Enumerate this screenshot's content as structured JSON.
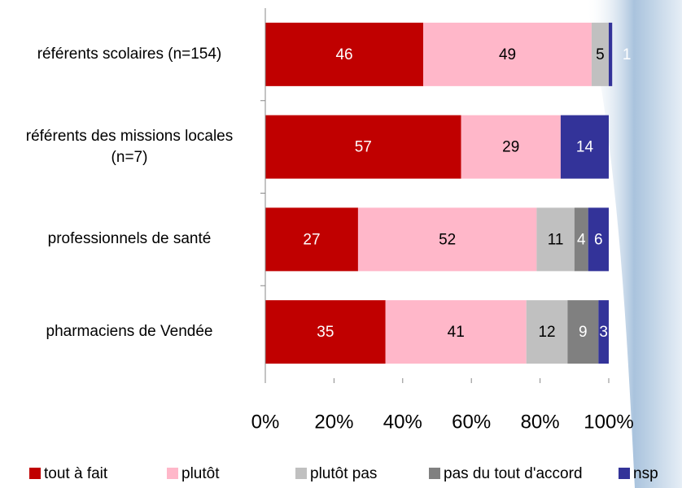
{
  "chart_data": {
    "type": "stacked_bar_horizontal",
    "categories": [
      "référents scolaires (n=154)",
      "référents des missions locales (n=7)",
      "professionnels de santé",
      "pharmaciens de Vendée"
    ],
    "series": [
      {
        "name": "tout à fait",
        "color": "#c00000",
        "values": [
          46,
          57,
          27,
          35
        ]
      },
      {
        "name": "plutôt",
        "color": "#ffb7c9",
        "values": [
          49,
          29,
          52,
          41
        ]
      },
      {
        "name": "plutôt pas",
        "color": "#c0c0c0",
        "values": [
          5,
          null,
          11,
          12
        ]
      },
      {
        "name": "pas du tout d'accord",
        "color": "#808080",
        "values": [
          null,
          null,
          4,
          9
        ]
      },
      {
        "name": "nsp",
        "color": "#333399",
        "values": [
          1,
          14,
          6,
          3
        ]
      }
    ],
    "xlim": [
      0,
      100
    ],
    "xticks": [
      {
        "value": 0,
        "label": "0%"
      },
      {
        "value": 20,
        "label": "20%"
      },
      {
        "value": 40,
        "label": "40%"
      },
      {
        "value": 60,
        "label": "60%"
      },
      {
        "value": 80,
        "label": "80%"
      },
      {
        "value": 100,
        "label": "100%"
      }
    ],
    "legend": "bottom"
  }
}
